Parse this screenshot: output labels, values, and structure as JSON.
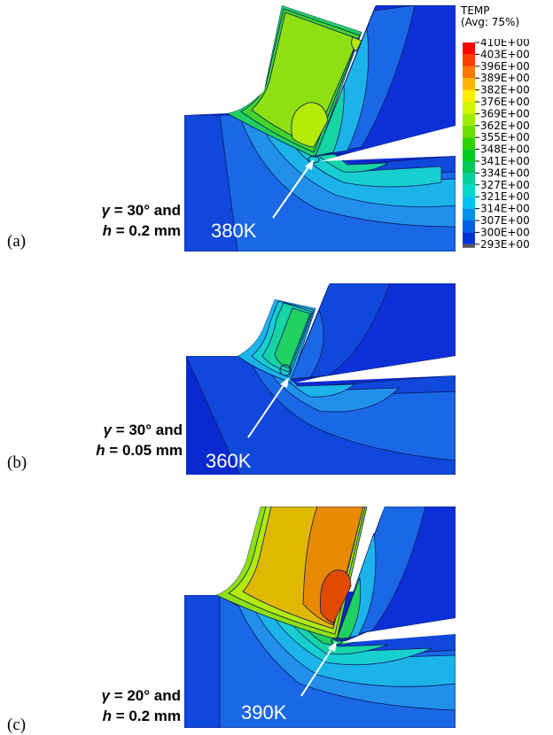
{
  "legend": {
    "title": "TEMP",
    "subtitle": "(Avg: 75%)",
    "labels": [
      "410E+00",
      "403E+00",
      "396E+00",
      "389E+00",
      "382E+00",
      "376E+00",
      "369E+00",
      "362E+00",
      "355E+00",
      "348E+00",
      "341E+00",
      "334E+00",
      "327E+00",
      "321E+00",
      "314E+00",
      "307E+00",
      "300E+00",
      "293E+00"
    ],
    "colors": [
      "#ff0000",
      "#ff3c00",
      "#ff7800",
      "#ffb400",
      "#ffee00",
      "#d2f500",
      "#a0ec00",
      "#6ee000",
      "#2cd400",
      "#00cc1e",
      "#00c85a",
      "#00d29a",
      "#00d8cc",
      "#00c2f0",
      "#0090ee",
      "#005ee8",
      "#0032d8",
      "#0008c8"
    ]
  },
  "panels": [
    {
      "letter": "(a)",
      "gamma_symbol": "γ",
      "gamma_value": " = 30° and",
      "h_symbol": "h",
      "h_value": " = 0.2 mm",
      "max_temp_label": "380K"
    },
    {
      "letter": "(b)",
      "gamma_symbol": "γ",
      "gamma_value": " = 30° and",
      "h_symbol": "h",
      "h_value": " = 0.05 mm",
      "max_temp_label": "360K"
    },
    {
      "letter": "(c)",
      "gamma_symbol": "γ",
      "gamma_value": " = 20° and",
      "h_symbol": "h",
      "h_value": " = 0.2 mm",
      "max_temp_label": "390K"
    }
  ],
  "palette": {
    "deep_blue": "#0a2ad0",
    "blue": "#1048dc",
    "mid_blue": "#1a68e6",
    "light_blue": "#2290ea",
    "cyan_blue": "#1cb4e8",
    "cyan": "#18cfd0",
    "teal": "#16d4a4",
    "green": "#20d060",
    "bright_green": "#42d42a",
    "yellow_green": "#8ee010",
    "lime": "#b4ea08",
    "yellow": "#e8e800",
    "gold": "#e0b800",
    "orange": "#e88a00",
    "red_orange": "#e04a00",
    "tool_blue": "#0c30d8",
    "white": "#ffffff"
  }
}
